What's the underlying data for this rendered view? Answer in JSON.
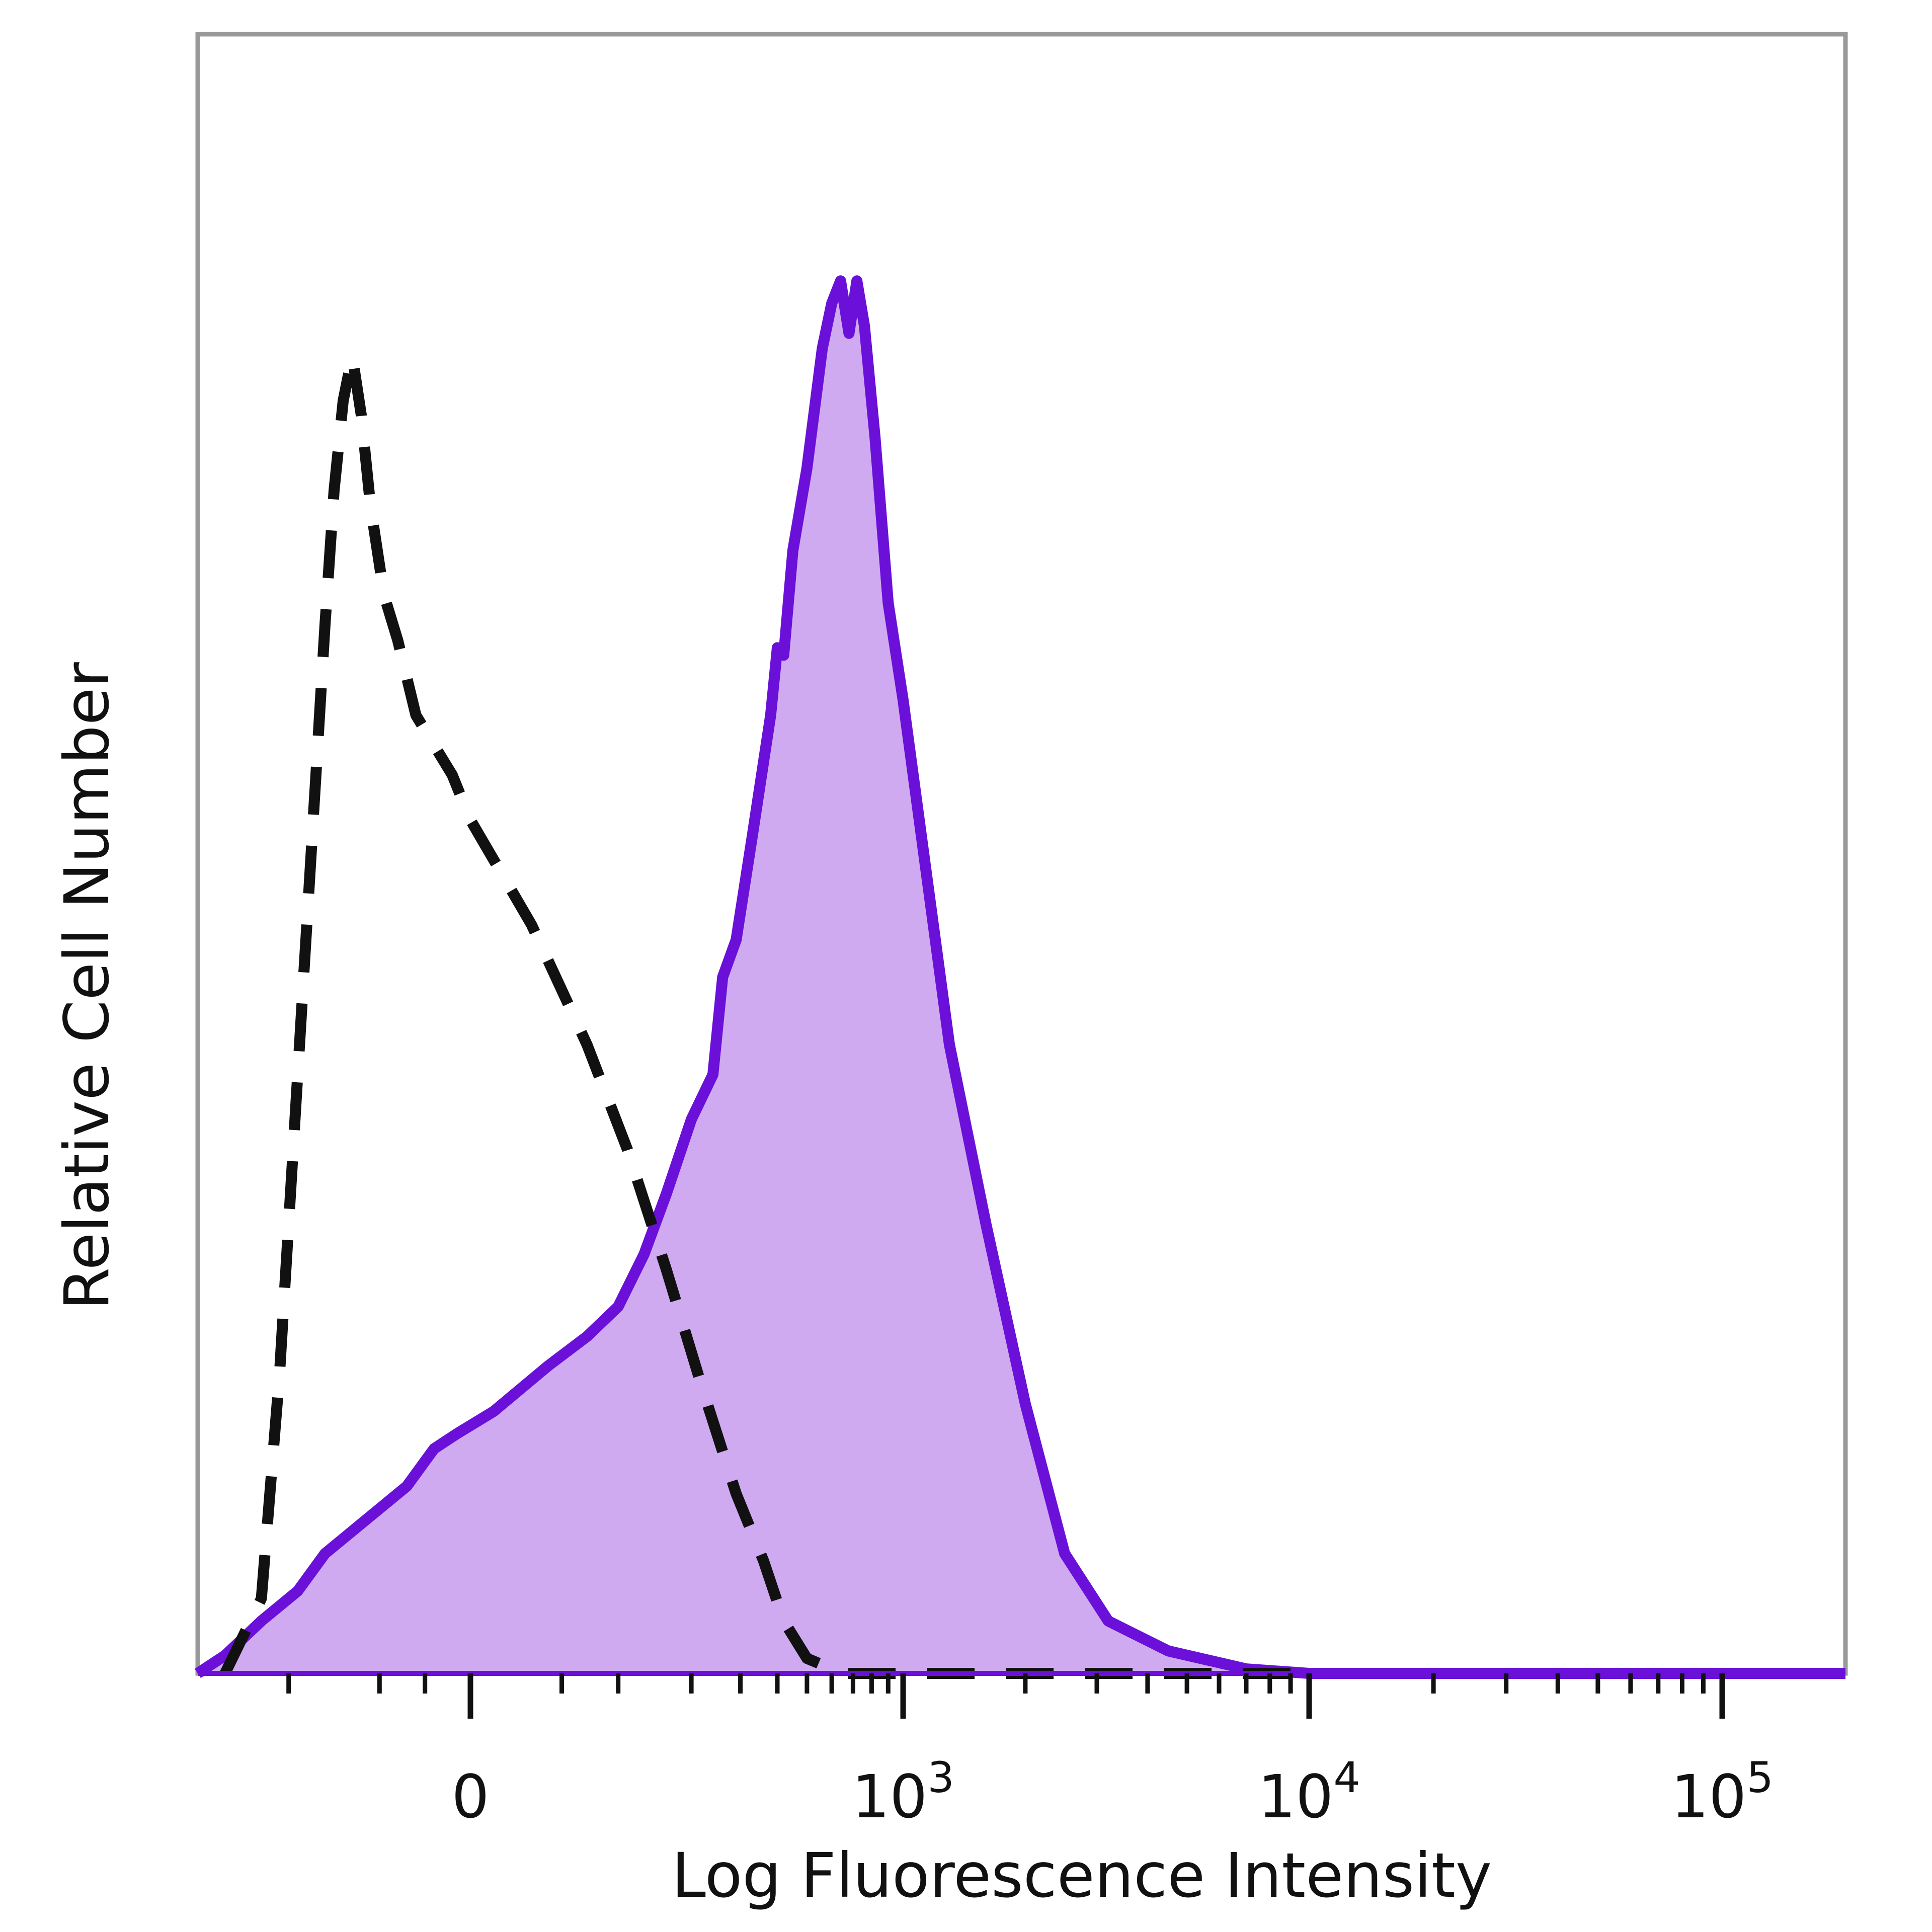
{
  "chart_data": {
    "type": "area",
    "xlabel": "Log Fluorescence Intensity",
    "ylabel": "Relative Cell Number",
    "x_scale": "biexponential",
    "xlim": [
      -300,
      160000
    ],
    "ylim": [
      0,
      100
    ],
    "x_ticks": [
      {
        "value": 0,
        "base": "0",
        "exp": ""
      },
      {
        "value": 1000,
        "base": "10",
        "exp": "3"
      },
      {
        "value": 10000,
        "base": "10",
        "exp": "4"
      },
      {
        "value": 100000,
        "base": "10",
        "exp": "5"
      }
    ],
    "grid": false,
    "legend": "none",
    "colors": {
      "stained_line": "#6a10d8",
      "stained_fill": "#cfaaf0",
      "control_line": "#111111",
      "frame": "#999999"
    },
    "series": [
      {
        "style": "filled-solid",
        "points": [
          [
            -300,
            0.0
          ],
          [
            -270,
            1.2
          ],
          [
            -230,
            3.5
          ],
          [
            -190,
            5.5
          ],
          [
            -160,
            8.0
          ],
          [
            -130,
            9.5
          ],
          [
            -100,
            11.0
          ],
          [
            -70,
            12.5
          ],
          [
            -40,
            15.0
          ],
          [
            -15,
            16.0
          ],
          [
            10,
            17.5
          ],
          [
            40,
            20.5
          ],
          [
            70,
            22.5
          ],
          [
            100,
            24.5
          ],
          [
            130,
            28.0
          ],
          [
            160,
            32.0
          ],
          [
            200,
            37.0
          ],
          [
            240,
            40.0
          ],
          [
            260,
            46.5
          ],
          [
            290,
            49.0
          ],
          [
            330,
            56.0
          ],
          [
            380,
            64.0
          ],
          [
            400,
            68.5
          ],
          [
            420,
            68.0
          ],
          [
            450,
            75.0
          ],
          [
            500,
            80.5
          ],
          [
            560,
            88.5
          ],
          [
            600,
            91.5
          ],
          [
            640,
            93.0
          ],
          [
            680,
            89.5
          ],
          [
            720,
            93.0
          ],
          [
            760,
            90.0
          ],
          [
            820,
            82.5
          ],
          [
            900,
            71.5
          ],
          [
            1000,
            65.0
          ],
          [
            1300,
            42.0
          ],
          [
            1600,
            30.0
          ],
          [
            2000,
            18.0
          ],
          [
            2500,
            8.0
          ],
          [
            3200,
            3.5
          ],
          [
            4500,
            1.5
          ],
          [
            7000,
            0.3
          ],
          [
            10000,
            0.0
          ],
          [
            160000,
            0.0
          ]
        ]
      },
      {
        "style": "dashed",
        "points": [
          [
            -270,
            0.0
          ],
          [
            -230,
            5.0
          ],
          [
            -210,
            20.0
          ],
          [
            -190,
            40.0
          ],
          [
            -170,
            60.0
          ],
          [
            -160,
            70.0
          ],
          [
            -150,
            79.0
          ],
          [
            -140,
            85.0
          ],
          [
            -130,
            88.0
          ],
          [
            -120,
            84.0
          ],
          [
            -110,
            78.0
          ],
          [
            -95,
            72.0
          ],
          [
            -80,
            69.0
          ],
          [
            -60,
            64.0
          ],
          [
            -40,
            62.0
          ],
          [
            -20,
            60.0
          ],
          [
            0,
            57.0
          ],
          [
            30,
            50.0
          ],
          [
            70,
            42.0
          ],
          [
            110,
            35.0
          ],
          [
            160,
            27.0
          ],
          [
            220,
            19.0
          ],
          [
            290,
            12.0
          ],
          [
            360,
            7.5
          ],
          [
            420,
            3.5
          ],
          [
            500,
            1.0
          ],
          [
            650,
            0.0
          ],
          [
            10000,
            0.0
          ]
        ]
      }
    ]
  }
}
